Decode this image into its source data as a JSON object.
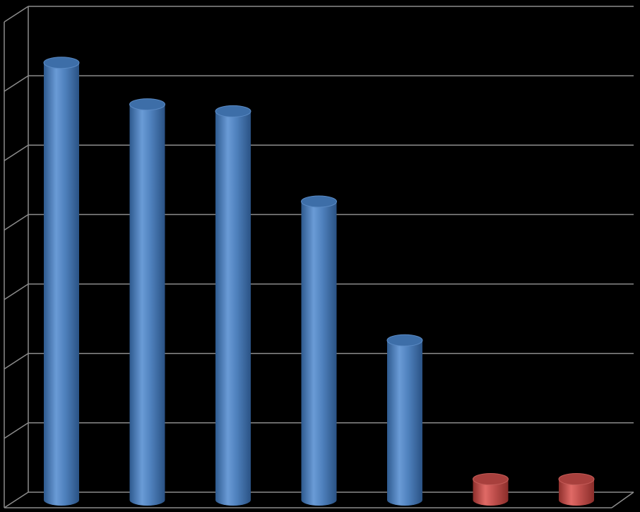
{
  "chart_data": {
    "type": "bar",
    "style": "3d-cylinder",
    "categories": [
      "",
      "",
      "",
      "",
      "",
      "",
      ""
    ],
    "values": [
      6.3,
      5.7,
      5.6,
      4.3,
      2.3,
      0.3,
      0.3
    ],
    "bar_colors": [
      "#4f81bd",
      "#4f81bd",
      "#4f81bd",
      "#4f81bd",
      "#4f81bd",
      "#c0504d",
      "#c0504d"
    ],
    "ylim": [
      0,
      7
    ],
    "y_tick_step": 1,
    "grid": true,
    "legend": "none",
    "title": "",
    "xlabel": "",
    "ylabel": ""
  },
  "colors": {
    "background": "#000000",
    "gridline": "#8c8c8c",
    "series_blue": "#4f81bd",
    "series_red": "#c0504d"
  }
}
